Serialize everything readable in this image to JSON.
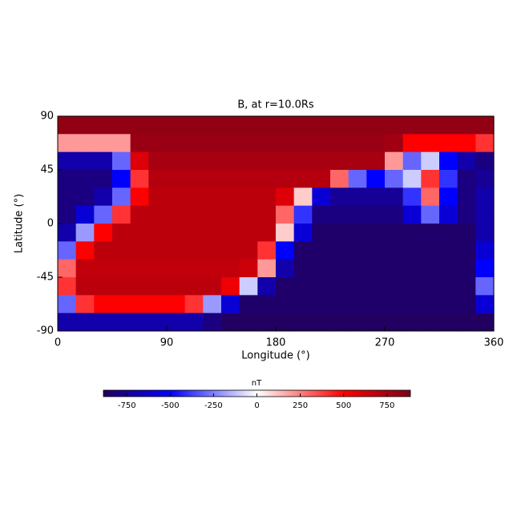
{
  "chart_data": {
    "type": "heatmap",
    "title": "B, at r=10.0Rs",
    "x_label": "Longitude (°)",
    "y_label": "Latitude (°)",
    "xlim": [
      0,
      360
    ],
    "xticks": [
      0,
      90,
      180,
      270,
      360
    ],
    "ylim": [
      -90,
      90
    ],
    "yticks": [
      -90,
      -45,
      0,
      45,
      90
    ],
    "colorbar_label": "nT",
    "clim": [
      -885,
      885
    ],
    "cticks": [
      -750,
      -500,
      -250,
      0,
      250,
      500,
      750
    ],
    "colorscale": [
      [
        -885,
        "#22005c"
      ],
      [
        -500,
        "#0000ff"
      ],
      [
        0,
        "#ffffff"
      ],
      [
        500,
        "#ff0000"
      ],
      [
        885,
        "#7c0018"
      ]
    ],
    "z": [
      [
        820,
        820,
        820,
        820,
        820,
        820,
        820,
        820,
        820,
        820,
        820,
        820,
        820,
        820,
        820,
        820,
        820,
        820,
        820,
        820,
        820,
        820,
        820,
        820
      ],
      [
        200,
        200,
        200,
        200,
        800,
        800,
        800,
        800,
        800,
        800,
        800,
        800,
        800,
        800,
        800,
        800,
        800,
        800,
        780,
        500,
        500,
        500,
        500,
        400
      ],
      [
        -700,
        -700,
        -700,
        -300,
        600,
        760,
        760,
        760,
        760,
        760,
        760,
        760,
        760,
        760,
        760,
        760,
        760,
        760,
        200,
        -300,
        -100,
        -500,
        -700,
        -800
      ],
      [
        -800,
        -800,
        -800,
        -500,
        400,
        720,
        720,
        720,
        720,
        720,
        720,
        720,
        720,
        720,
        720,
        300,
        -300,
        -500,
        -300,
        -100,
        400,
        -400,
        -800,
        -750
      ],
      [
        -800,
        -800,
        -700,
        -300,
        500,
        700,
        700,
        700,
        700,
        700,
        700,
        700,
        600,
        100,
        -600,
        -750,
        -750,
        -750,
        -750,
        -400,
        300,
        -500,
        -800,
        -700
      ],
      [
        -800,
        -600,
        -300,
        400,
        700,
        700,
        700,
        700,
        700,
        700,
        700,
        700,
        300,
        -400,
        -800,
        -800,
        -800,
        -800,
        -800,
        -600,
        -300,
        -600,
        -800,
        -700
      ],
      [
        -700,
        -200,
        500,
        700,
        700,
        700,
        700,
        700,
        700,
        700,
        700,
        700,
        100,
        -600,
        -850,
        -850,
        -850,
        -850,
        -850,
        -850,
        -850,
        -850,
        -850,
        -700
      ],
      [
        -300,
        500,
        700,
        700,
        700,
        700,
        700,
        700,
        700,
        700,
        700,
        400,
        -500,
        -850,
        -850,
        -850,
        -850,
        -850,
        -850,
        -850,
        -850,
        -850,
        -850,
        -600
      ],
      [
        300,
        680,
        680,
        680,
        680,
        680,
        680,
        680,
        680,
        680,
        650,
        200,
        -700,
        -850,
        -850,
        -850,
        -850,
        -850,
        -850,
        -850,
        -850,
        -850,
        -850,
        -500
      ],
      [
        400,
        700,
        700,
        700,
        700,
        700,
        700,
        700,
        700,
        550,
        -100,
        -700,
        -850,
        -850,
        -850,
        -850,
        -850,
        -850,
        -850,
        -850,
        -850,
        -850,
        -850,
        -300
      ],
      [
        -300,
        400,
        500,
        500,
        500,
        500,
        500,
        400,
        -200,
        -600,
        -850,
        -850,
        -850,
        -850,
        -850,
        -850,
        -850,
        -850,
        -850,
        -850,
        -850,
        -850,
        -850,
        -600
      ],
      [
        -700,
        -700,
        -700,
        -700,
        -700,
        -700,
        -700,
        -700,
        -800,
        -870,
        -870,
        -870,
        -870,
        -870,
        -870,
        -870,
        -870,
        -870,
        -870,
        -870,
        -870,
        -870,
        -870,
        -870
      ]
    ]
  }
}
